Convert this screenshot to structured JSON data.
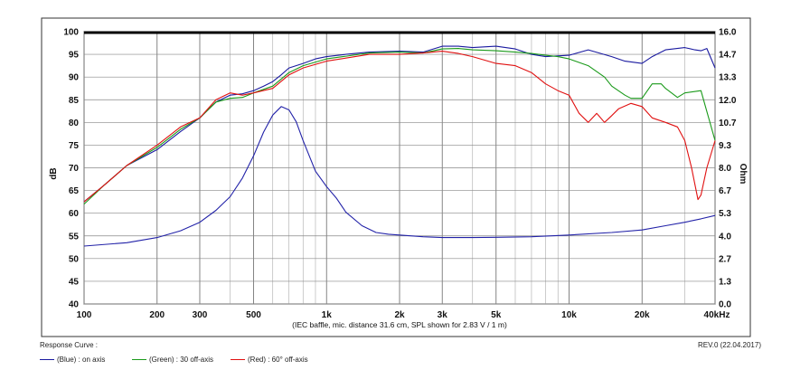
{
  "chart_data": {
    "type": "line",
    "xscale": "log",
    "xlim": [
      100,
      40000
    ],
    "ylim": [
      40,
      100
    ],
    "y2lim": [
      0.0,
      16.0
    ],
    "ylabel": "dB",
    "y2label": "Ohm",
    "x_ticks": [
      {
        "v": 100,
        "label": "100"
      },
      {
        "v": 200,
        "label": "200"
      },
      {
        "v": 300,
        "label": "300"
      },
      {
        "v": 500,
        "label": "500"
      },
      {
        "v": 1000,
        "label": "1k"
      },
      {
        "v": 2000,
        "label": "2k"
      },
      {
        "v": 3000,
        "label": "3k"
      },
      {
        "v": 5000,
        "label": "5k"
      },
      {
        "v": 10000,
        "label": "10k"
      },
      {
        "v": 20000,
        "label": "20k"
      },
      {
        "v": 40000,
        "label": "40kHz"
      }
    ],
    "y_ticks": [
      "40",
      "45",
      "50",
      "55",
      "60",
      "65",
      "70",
      "75",
      "80",
      "85",
      "90",
      "95",
      "100"
    ],
    "y2_ticks": [
      "0.0",
      "1.3",
      "2.7",
      "4.0",
      "5.3",
      "6.7",
      "8.0",
      "9.3",
      "10.7",
      "12.0",
      "13.3",
      "14.7",
      "16.0"
    ],
    "note": "(IEC baffle, mic. distance 31.6 cm, SPL shown for 2.83 V / 1 m)",
    "grid": true,
    "series": [
      {
        "name": "on axis",
        "color": "#1a1aa0",
        "axis": "left",
        "x": [
          100,
          120,
          150,
          200,
          250,
          300,
          350,
          400,
          450,
          500,
          550,
          600,
          650,
          700,
          800,
          900,
          1000,
          1200,
          1500,
          2000,
          2500,
          3000,
          3500,
          4000,
          5000,
          6000,
          7000,
          8000,
          10000,
          12000,
          15000,
          17000,
          20000,
          22000,
          25000,
          30000,
          33000,
          35000,
          37000,
          40000
        ],
        "y": [
          62.5,
          66,
          70.5,
          74,
          78,
          81,
          84.5,
          86,
          86.3,
          87,
          88,
          89,
          90.5,
          92,
          93,
          94,
          94.5,
          95,
          95.5,
          95.7,
          95.5,
          96.8,
          96.8,
          96.5,
          96.8,
          96.2,
          95,
          94.5,
          94.8,
          96,
          94.5,
          93.5,
          93,
          94.5,
          96,
          96.5,
          96,
          95.8,
          96.3,
          92
        ]
      },
      {
        "name": "30 off-axis",
        "color": "#1a9a1a",
        "axis": "left",
        "x": [
          100,
          120,
          150,
          200,
          250,
          300,
          350,
          400,
          450,
          500,
          600,
          700,
          800,
          1000,
          1500,
          2000,
          2500,
          3000,
          3500,
          4000,
          5000,
          6000,
          7000,
          8000,
          9000,
          10000,
          12000,
          14000,
          15000,
          17000,
          18000,
          20000,
          22000,
          24000,
          25000,
          28000,
          30000,
          35000,
          40000
        ],
        "y": [
          62,
          66,
          70.5,
          74.5,
          78.5,
          81,
          84.5,
          85.3,
          85.5,
          86.5,
          88,
          91,
          92.5,
          94,
          95.3,
          95.5,
          95.3,
          96.2,
          96.3,
          96,
          95.8,
          95.5,
          95.2,
          94.8,
          94.5,
          94,
          92.5,
          90,
          88,
          86,
          85.3,
          85.3,
          88.5,
          88.5,
          87.5,
          85.5,
          86.5,
          87,
          76
        ]
      },
      {
        "name": "60° off-axis",
        "color": "#e01010",
        "axis": "left",
        "x": [
          100,
          120,
          150,
          200,
          250,
          300,
          350,
          400,
          450,
          500,
          600,
          700,
          800,
          1000,
          1500,
          2000,
          2500,
          3000,
          3500,
          4000,
          5000,
          6000,
          7000,
          8000,
          9000,
          10000,
          11000,
          12000,
          13000,
          14000,
          15000,
          16000,
          18000,
          20000,
          22000,
          25000,
          28000,
          30000,
          32000,
          34000,
          35000,
          37000,
          40000
        ],
        "y": [
          62.5,
          66,
          70.5,
          75,
          79,
          81,
          85,
          86.5,
          86,
          86.5,
          87.5,
          90.5,
          92,
          93.5,
          95,
          95,
          95.3,
          95.7,
          95.2,
          94.5,
          93,
          92.5,
          91,
          88.5,
          87,
          86,
          82,
          80,
          82,
          80,
          81.5,
          83,
          84.2,
          83.5,
          81,
          80,
          79,
          76,
          70,
          63,
          64,
          70,
          76
        ]
      },
      {
        "name": "impedance",
        "color": "#2222a8",
        "axis": "right",
        "x": [
          100,
          150,
          200,
          250,
          300,
          350,
          400,
          450,
          500,
          550,
          600,
          650,
          700,
          750,
          800,
          900,
          1000,
          1100,
          1200,
          1400,
          1600,
          1800,
          2000,
          2500,
          3000,
          4000,
          5000,
          7000,
          10000,
          15000,
          20000,
          25000,
          30000,
          35000,
          40000
        ],
        "y": [
          3.4,
          3.6,
          3.9,
          4.3,
          4.8,
          5.5,
          6.3,
          7.4,
          8.7,
          10.1,
          11.1,
          11.6,
          11.4,
          10.7,
          9.6,
          7.8,
          6.9,
          6.2,
          5.4,
          4.6,
          4.2,
          4.1,
          4.05,
          3.95,
          3.9,
          3.9,
          3.92,
          3.95,
          4.05,
          4.2,
          4.35,
          4.6,
          4.8,
          5,
          5.2
        ]
      }
    ]
  },
  "footer": {
    "response_curve_label": "Response Curve :",
    "revision": "REV.0 (22.04.2017)",
    "legend": [
      {
        "text": "(Blue) : on axis",
        "color": "#1a1aa0"
      },
      {
        "text": "(Green) : 30 off-axis",
        "color": "#1a9a1a"
      },
      {
        "text": "(Red) : 60° off-axis",
        "color": "#e01010"
      }
    ]
  }
}
